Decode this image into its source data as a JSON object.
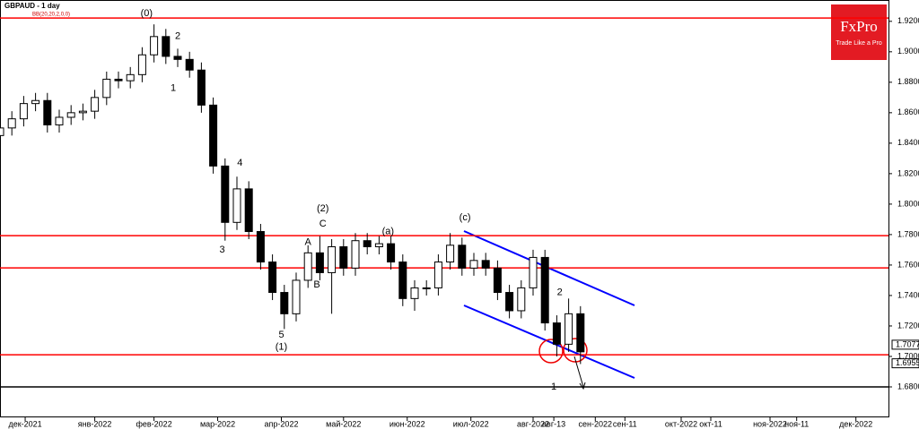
{
  "chart_data": {
    "type": "candlestick",
    "title": "GBPAUD - 1 day",
    "subtitle": "BB(20,20,2,0,0)",
    "brand": "FxPro",
    "tagline": "Trade Like a Pro",
    "up_color": "#ffffff",
    "down_color": "#000000",
    "level_color": "#ff0000",
    "support_color": "#000000",
    "x": [
      0,
      4,
      8,
      12,
      16,
      20,
      24,
      28,
      32,
      36,
      40,
      44,
      48,
      52,
      56,
      60,
      64,
      68,
      72,
      76,
      80,
      84,
      88,
      92,
      96,
      100,
      104,
      108,
      112,
      116,
      120,
      124,
      128,
      132,
      136,
      140,
      144,
      148,
      152,
      156,
      160,
      164,
      168,
      172,
      176,
      180,
      184,
      188,
      192,
      196
    ],
    "open": [
      1.845,
      1.85,
      1.856,
      1.866,
      1.868,
      1.852,
      1.857,
      1.86,
      1.861,
      1.87,
      1.882,
      1.881,
      1.885,
      1.898,
      1.91,
      1.897,
      1.895,
      1.888,
      1.865,
      1.825,
      1.788,
      1.81,
      1.782,
      1.762,
      1.742,
      1.728,
      1.75,
      1.768,
      1.755,
      1.772,
      1.758,
      1.776,
      1.772,
      1.774,
      1.762,
      1.738,
      1.745,
      1.745,
      1.762,
      1.773,
      1.758,
      1.763,
      1.758,
      1.742,
      1.73,
      1.745,
      1.765,
      1.722,
      1.708,
      1.728
    ],
    "high": [
      1.855,
      1.861,
      1.871,
      1.873,
      1.873,
      1.862,
      1.865,
      1.866,
      1.875,
      1.887,
      1.887,
      1.89,
      1.903,
      1.918,
      1.915,
      1.902,
      1.9,
      1.893,
      1.87,
      1.83,
      1.818,
      1.815,
      1.787,
      1.767,
      1.747,
      1.755,
      1.773,
      1.779,
      1.777,
      1.777,
      1.781,
      1.781,
      1.779,
      1.779,
      1.767,
      1.75,
      1.75,
      1.767,
      1.781,
      1.778,
      1.768,
      1.768,
      1.763,
      1.747,
      1.75,
      1.77,
      1.77,
      1.727,
      1.738,
      1.733
    ],
    "low": [
      1.84,
      1.845,
      1.851,
      1.861,
      1.847,
      1.847,
      1.852,
      1.855,
      1.856,
      1.865,
      1.876,
      1.876,
      1.88,
      1.893,
      1.892,
      1.89,
      1.883,
      1.86,
      1.82,
      1.776,
      1.783,
      1.777,
      1.757,
      1.737,
      1.718,
      1.723,
      1.745,
      1.75,
      1.728,
      1.753,
      1.753,
      1.767,
      1.767,
      1.757,
      1.733,
      1.73,
      1.74,
      1.74,
      1.757,
      1.753,
      1.753,
      1.753,
      1.737,
      1.725,
      1.725,
      1.74,
      1.717,
      1.7,
      1.703,
      1.695
    ],
    "close": [
      1.85,
      1.856,
      1.866,
      1.868,
      1.852,
      1.857,
      1.86,
      1.861,
      1.87,
      1.882,
      1.881,
      1.885,
      1.898,
      1.91,
      1.897,
      1.895,
      1.888,
      1.865,
      1.825,
      1.788,
      1.81,
      1.782,
      1.762,
      1.742,
      1.728,
      1.75,
      1.768,
      1.755,
      1.772,
      1.758,
      1.776,
      1.772,
      1.774,
      1.762,
      1.738,
      1.745,
      1.745,
      1.762,
      1.773,
      1.758,
      1.763,
      1.758,
      1.742,
      1.73,
      1.745,
      1.765,
      1.722,
      1.708,
      1.728,
      1.703
    ],
    "levels": [
      1.9222,
      1.7793,
      1.7581,
      1.7011
    ],
    "support": 1.68,
    "price_tags": [
      {
        "value": 1.7077,
        "label": "1.7077"
      },
      {
        "value": 1.6955,
        "label": "1.6955"
      }
    ],
    "xlim": [
      0,
      300
    ],
    "ylim": [
      1.66,
      1.934
    ],
    "yticks": [
      {
        "value": 1.68,
        "label": "1.6800"
      },
      {
        "value": 1.7,
        "label": "1.7000"
      },
      {
        "value": 1.72,
        "label": "1.7200"
      },
      {
        "value": 1.74,
        "label": "1.7400"
      },
      {
        "value": 1.76,
        "label": "1.7600"
      },
      {
        "value": 1.78,
        "label": "1.7800"
      },
      {
        "value": 1.8,
        "label": "1.8000"
      },
      {
        "value": 1.82,
        "label": "1.8200"
      },
      {
        "value": 1.84,
        "label": "1.8400"
      },
      {
        "value": 1.86,
        "label": "1.8600"
      },
      {
        "value": 1.88,
        "label": "1.8800"
      },
      {
        "value": 1.9,
        "label": "1.9000"
      },
      {
        "value": 1.92,
        "label": "1.9200"
      }
    ],
    "xticks": [
      {
        "value": 8.5,
        "label": "дек-2021"
      },
      {
        "value": 32,
        "label": "янв-2022"
      },
      {
        "value": 52,
        "label": "фев-2022"
      },
      {
        "value": 73.5,
        "label": "мар-2022"
      },
      {
        "value": 95,
        "label": "апр-2022"
      },
      {
        "value": 116,
        "label": "май-2022"
      },
      {
        "value": 137.5,
        "label": "июн-2022"
      },
      {
        "value": 159,
        "label": "июл-2022"
      },
      {
        "value": 180,
        "label": "авг-2022"
      },
      {
        "value": 187,
        "label": "авг-13"
      },
      {
        "value": 201,
        "label": "сен-2022"
      },
      {
        "value": 211,
        "label": "сен-11"
      },
      {
        "value": 230,
        "label": "окт-2022"
      },
      {
        "value": 240,
        "label": "окт-11"
      },
      {
        "value": 260,
        "label": "ноя-2022"
      },
      {
        "value": 269,
        "label": "ноя-11"
      },
      {
        "value": 289,
        "label": "дек-2022"
      }
    ],
    "annotations": [
      {
        "text": "(0)",
        "x": 49.5,
        "y": 1.925
      },
      {
        "text": "2",
        "x": 60,
        "y": 1.91
      },
      {
        "text": "1",
        "x": 58.5,
        "y": 1.876
      },
      {
        "text": "3",
        "x": 75,
        "y": 1.77
      },
      {
        "text": "4",
        "x": 81,
        "y": 1.827
      },
      {
        "text": "5",
        "x": 95,
        "y": 1.714
      },
      {
        "text": "(1)",
        "x": 95,
        "y": 1.706
      },
      {
        "text": "(2)",
        "x": 109,
        "y": 1.797
      },
      {
        "text": "C",
        "x": 109,
        "y": 1.787
      },
      {
        "text": "A",
        "x": 104,
        "y": 1.775
      },
      {
        "text": "B",
        "x": 107,
        "y": 1.747
      },
      {
        "text": "(a)",
        "x": 131,
        "y": 1.782
      },
      {
        "text": "(c)",
        "x": 157,
        "y": 1.791
      },
      {
        "text": "2",
        "x": 189,
        "y": 1.742
      },
      {
        "text": "1",
        "x": 187,
        "y": 1.68
      }
    ]
  }
}
